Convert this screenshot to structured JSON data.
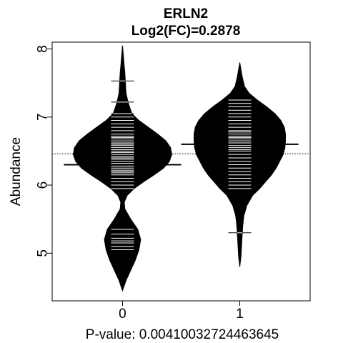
{
  "chart_data": {
    "type": "beanplot",
    "title": "ERLN2",
    "subtitle": "Log2(FC)=0.2878",
    "xlabel": "P-value: 0.00410032724463645",
    "ylabel": "Abundance",
    "categories": [
      "0",
      "1"
    ],
    "xlim": [
      -0.6,
      1.6
    ],
    "ylim": [
      4.3,
      8.1
    ],
    "y_ticks": [
      5,
      6,
      7,
      8
    ],
    "overall_mean": 6.46,
    "groups": [
      {
        "category": "0",
        "mean": 6.3,
        "density": [
          [
            4.45,
            0.0
          ],
          [
            4.6,
            0.03
          ],
          [
            4.75,
            0.07
          ],
          [
            4.9,
            0.11
          ],
          [
            5.05,
            0.14
          ],
          [
            5.2,
            0.155
          ],
          [
            5.35,
            0.13
          ],
          [
            5.5,
            0.07
          ],
          [
            5.65,
            0.02
          ],
          [
            5.75,
            0.015
          ],
          [
            5.85,
            0.04
          ],
          [
            5.95,
            0.1
          ],
          [
            6.05,
            0.18
          ],
          [
            6.15,
            0.27
          ],
          [
            6.25,
            0.35
          ],
          [
            6.35,
            0.4
          ],
          [
            6.45,
            0.42
          ],
          [
            6.55,
            0.41
          ],
          [
            6.65,
            0.37
          ],
          [
            6.75,
            0.3
          ],
          [
            6.85,
            0.22
          ],
          [
            6.95,
            0.14
          ],
          [
            7.05,
            0.08
          ],
          [
            7.2,
            0.05
          ],
          [
            7.35,
            0.03
          ],
          [
            7.5,
            0.025
          ],
          [
            7.65,
            0.02
          ],
          [
            7.8,
            0.012
          ],
          [
            7.95,
            0.005
          ],
          [
            8.05,
            0.0
          ]
        ],
        "observations": [
          5.05,
          5.1,
          5.15,
          5.18,
          5.22,
          5.28,
          5.35,
          5.95,
          6.0,
          6.05,
          6.1,
          6.15,
          6.18,
          6.2,
          6.22,
          6.25,
          6.28,
          6.3,
          6.32,
          6.35,
          6.38,
          6.4,
          6.42,
          6.45,
          6.48,
          6.5,
          6.52,
          6.55,
          6.58,
          6.6,
          6.62,
          6.65,
          6.68,
          6.7,
          6.72,
          6.75,
          6.8,
          6.85,
          6.9,
          6.95,
          7.0,
          7.05,
          7.22,
          7.53
        ]
      },
      {
        "category": "1",
        "mean": 6.6,
        "density": [
          [
            4.8,
            0.0
          ],
          [
            4.95,
            0.01
          ],
          [
            5.1,
            0.015
          ],
          [
            5.25,
            0.02
          ],
          [
            5.4,
            0.025
          ],
          [
            5.55,
            0.035
          ],
          [
            5.7,
            0.06
          ],
          [
            5.85,
            0.11
          ],
          [
            5.95,
            0.17
          ],
          [
            6.05,
            0.22
          ],
          [
            6.15,
            0.27
          ],
          [
            6.25,
            0.31
          ],
          [
            6.35,
            0.34
          ],
          [
            6.45,
            0.37
          ],
          [
            6.55,
            0.385
          ],
          [
            6.65,
            0.39
          ],
          [
            6.75,
            0.39
          ],
          [
            6.85,
            0.38
          ],
          [
            6.95,
            0.35
          ],
          [
            7.05,
            0.3
          ],
          [
            7.15,
            0.23
          ],
          [
            7.25,
            0.15
          ],
          [
            7.35,
            0.08
          ],
          [
            7.45,
            0.04
          ],
          [
            7.6,
            0.02
          ],
          [
            7.8,
            0.0
          ]
        ],
        "observations": [
          5.3,
          5.95,
          6.0,
          6.05,
          6.1,
          6.15,
          6.2,
          6.25,
          6.3,
          6.35,
          6.4,
          6.45,
          6.5,
          6.52,
          6.55,
          6.58,
          6.6,
          6.62,
          6.65,
          6.68,
          6.7,
          6.72,
          6.75,
          6.78,
          6.8,
          6.85,
          6.9,
          6.95,
          7.0,
          7.05,
          7.1,
          7.15,
          7.2,
          7.25
        ]
      }
    ]
  }
}
